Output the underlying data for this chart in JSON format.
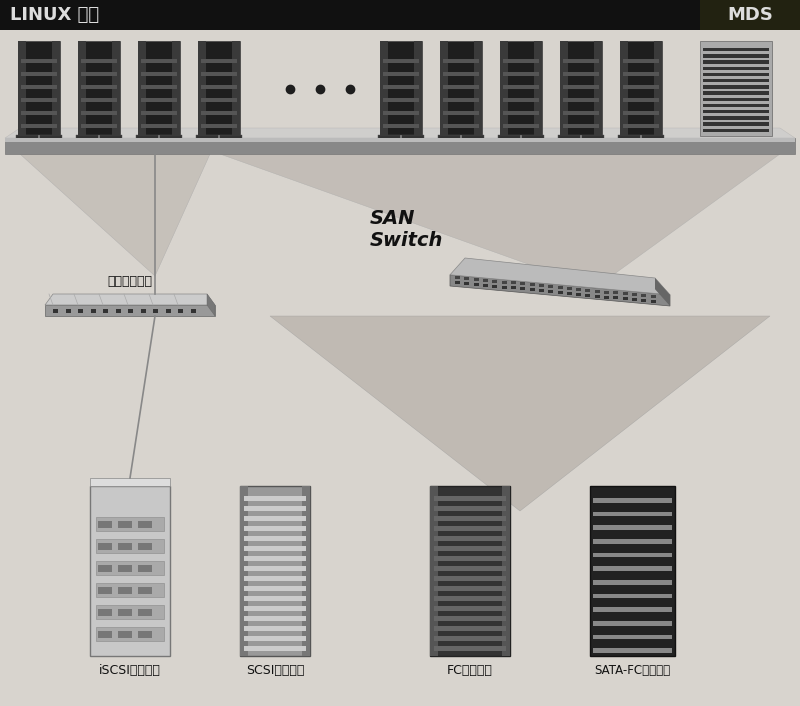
{
  "bg_color": "#d8d4ce",
  "header_bg": "#111111",
  "header_text_linux": "LINUX 群集",
  "header_text_mds": "MDS",
  "header_text_color": "#dddddd",
  "header_fontsize": 13,
  "label_fontsize": 9,
  "san_label": "SAN\nSwitch",
  "ethernet_label": "以太网交换机",
  "storage_labels": [
    "iSCSI磁盘阵列",
    "SCSI磁盘阵列",
    "FC磁盘阵列",
    "SATA-FC磁盘阵列"
  ]
}
